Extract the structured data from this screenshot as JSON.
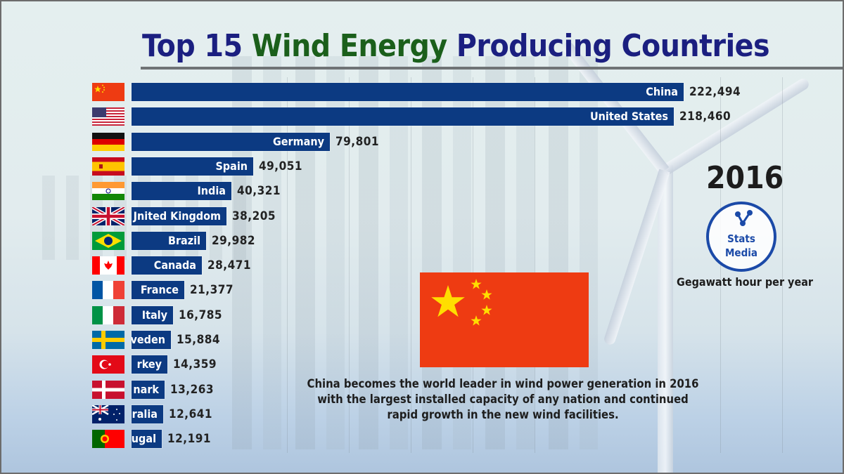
{
  "title": {
    "part1": "Top 15",
    "part2": "Wind Energy",
    "part3": "Producing Countries"
  },
  "year": "2016",
  "unit_label": "Gegawatt hour per year",
  "logo": {
    "line1": "Stats",
    "line2": "Media"
  },
  "caption": "China becomes the world leader in wind power generation in 2016 with the largest installed capacity of any nation and continued rapid growth in the new wind facilities.",
  "highlight_flag": "china-flag",
  "colors": {
    "bar": "#0c3a82",
    "title_blue": "#1b1f80",
    "title_green": "#1b5f1b"
  },
  "rows": [
    {
      "label": "China",
      "display_label": "China",
      "value": "222,494",
      "flag": "cn"
    },
    {
      "label": "United States",
      "display_label": "United States",
      "value": "218,460",
      "flag": "us"
    },
    {
      "label": "Germany",
      "display_label": "Germany",
      "value": "79,801",
      "flag": "de"
    },
    {
      "label": "Spain",
      "display_label": "Spain",
      "value": "49,051",
      "flag": "es"
    },
    {
      "label": "India",
      "display_label": "India",
      "value": "40,321",
      "flag": "in"
    },
    {
      "label": "United Kingdom",
      "display_label": "Jnited Kingdom",
      "value": "38,205",
      "flag": "gb"
    },
    {
      "label": "Brazil",
      "display_label": "Brazil",
      "value": "29,982",
      "flag": "br"
    },
    {
      "label": "Canada",
      "display_label": "Canada",
      "value": "28,471",
      "flag": "ca"
    },
    {
      "label": "France",
      "display_label": "France",
      "value": "21,377",
      "flag": "fr"
    },
    {
      "label": "Italy",
      "display_label": "Italy",
      "value": "16,785",
      "flag": "it"
    },
    {
      "label": "Sweden",
      "display_label": "veden",
      "value": "15,884",
      "flag": "se"
    },
    {
      "label": "Turkey",
      "display_label": "rkey",
      "value": "14,359",
      "flag": "tr"
    },
    {
      "label": "Denmark",
      "display_label": "nark",
      "value": "13,263",
      "flag": "dk"
    },
    {
      "label": "Australia",
      "display_label": "ralia",
      "value": "12,641",
      "flag": "au"
    },
    {
      "label": "Portugal",
      "display_label": "ugal",
      "value": "12,191",
      "flag": "pt"
    }
  ],
  "chart_data": {
    "type": "bar",
    "orientation": "horizontal",
    "title": "Top 15 Wind Energy Producing Countries",
    "subtitle": "2016",
    "xlabel": "Gegawatt hour per year",
    "ylabel": "",
    "categories": [
      "China",
      "United States",
      "Germany",
      "Spain",
      "India",
      "United Kingdom",
      "Brazil",
      "Canada",
      "France",
      "Italy",
      "Sweden",
      "Turkey",
      "Denmark",
      "Australia",
      "Portugal"
    ],
    "values": [
      222494,
      218460,
      79801,
      49051,
      40321,
      38205,
      29982,
      28471,
      21377,
      16785,
      15884,
      14359,
      13263,
      12641,
      12191
    ],
    "xlim": [
      0,
      222494
    ],
    "grid": true,
    "legend": "none",
    "annotations": [
      "China becomes the world leader in wind power generation in 2016 with the largest installed capacity of any nation and continued rapid growth in the new wind facilities."
    ]
  }
}
